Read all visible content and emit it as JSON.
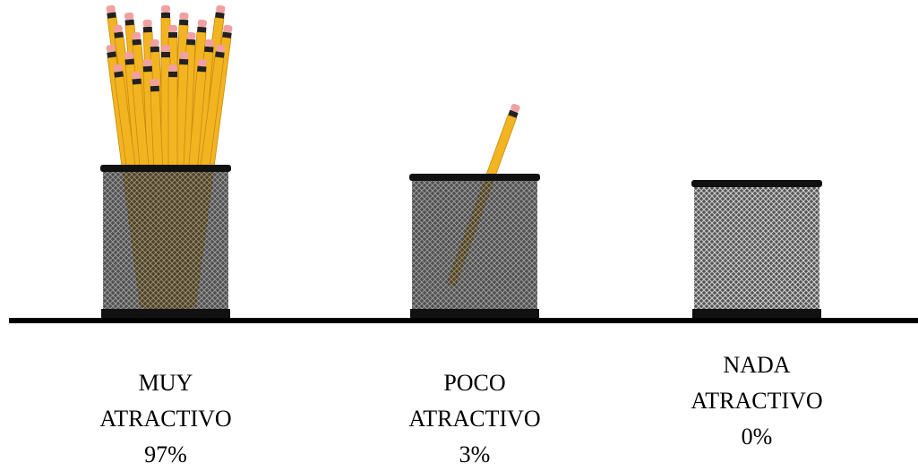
{
  "chart_data": {
    "type": "pictogram",
    "categories": [
      "MUY ATRACTIVO",
      "POCO ATRACTIVO",
      "NADA ATRACTIVO"
    ],
    "values": [
      97,
      3,
      0
    ],
    "value_labels": [
      "97%",
      "3%",
      "0%"
    ]
  }
}
